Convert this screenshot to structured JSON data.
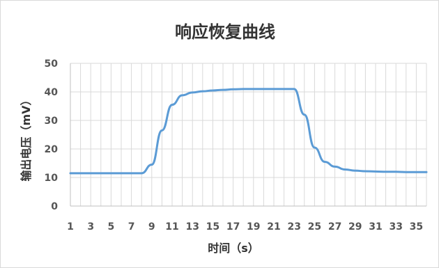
{
  "chart_data": {
    "type": "line",
    "title": "响应恢复曲线",
    "xlabel": "时间（s）",
    "ylabel": "输出电压（mV）",
    "x_tick_labels": [
      "1",
      "3",
      "5",
      "7",
      "9",
      "11",
      "13",
      "15",
      "17",
      "19",
      "21",
      "23",
      "25",
      "27",
      "29",
      "31",
      "33",
      "35"
    ],
    "y_tick_labels": [
      "0",
      "10",
      "20",
      "30",
      "40",
      "50"
    ],
    "xlim": [
      1,
      36
    ],
    "ylim": [
      0,
      50
    ],
    "grid": true,
    "colors": {
      "series": "#5b9bd5",
      "grid": "#d9d9d9",
      "text": "#333333"
    },
    "x": [
      1,
      2,
      3,
      4,
      5,
      6,
      7,
      8,
      9,
      10,
      11,
      12,
      13,
      14,
      15,
      16,
      17,
      18,
      19,
      20,
      21,
      22,
      23,
      24,
      25,
      26,
      27,
      28,
      29,
      30,
      31,
      32,
      33,
      34,
      35,
      36
    ],
    "values": [
      11.5,
      11.5,
      11.5,
      11.5,
      11.5,
      11.5,
      11.5,
      11.5,
      14.5,
      26.5,
      35.5,
      38.8,
      39.8,
      40.2,
      40.5,
      40.7,
      40.9,
      41.0,
      41.0,
      41.0,
      41.0,
      41.0,
      41.0,
      32.0,
      20.5,
      15.5,
      13.8,
      12.8,
      12.4,
      12.2,
      12.1,
      12.0,
      12.0,
      11.9,
      11.9,
      11.9
    ]
  }
}
